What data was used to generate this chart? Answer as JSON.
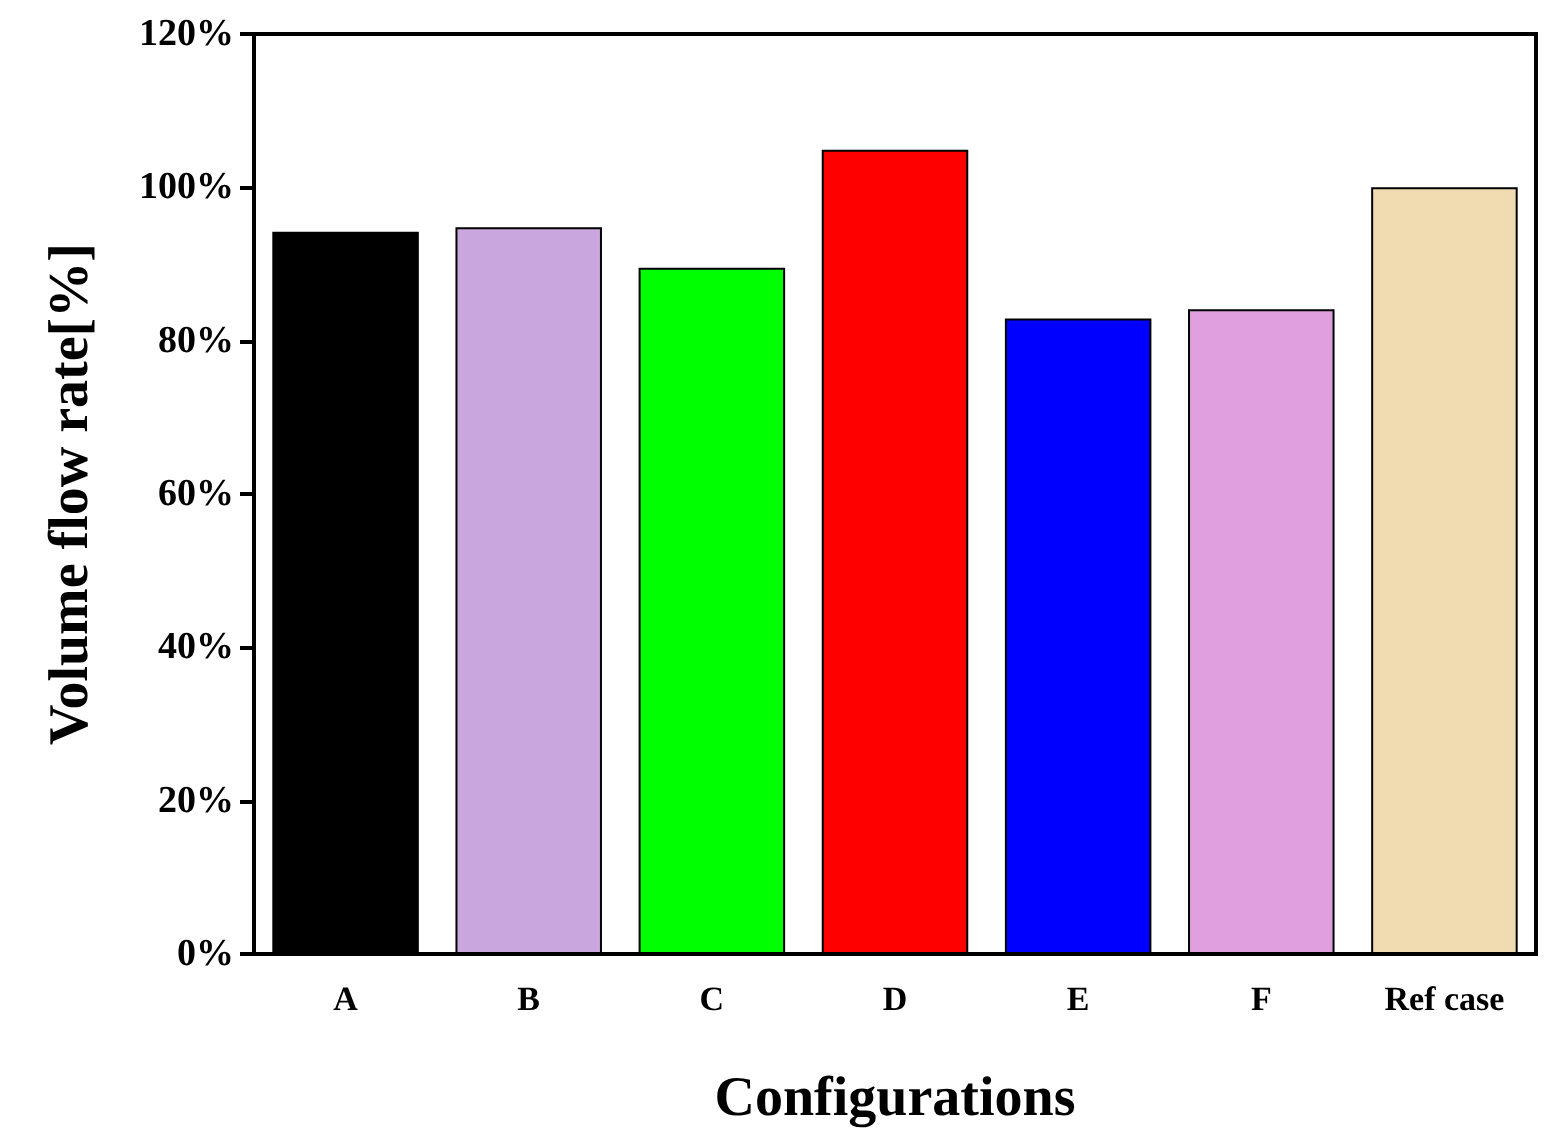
{
  "chart_data": {
    "type": "bar",
    "xlabel": "Configurations",
    "ylabel": "Volume flow rate[%]",
    "categories": [
      "A",
      "B",
      "C",
      "D",
      "E",
      "F",
      "Ref case"
    ],
    "values": [
      94.2,
      94.8,
      89.5,
      104.9,
      82.9,
      84.1,
      100
    ],
    "colors": [
      "#000000",
      "#c9a6dd",
      "#00ff00",
      "#ff0000",
      "#0000ff",
      "#e0a0e0",
      "#f0dcb0"
    ],
    "ylim": [
      0,
      120
    ],
    "yticks": [
      {
        "value": 0,
        "label": "0%"
      },
      {
        "value": 20,
        "label": "20%"
      },
      {
        "value": 40,
        "label": "40%"
      },
      {
        "value": 60,
        "label": "60%"
      },
      {
        "value": 80,
        "label": "80%"
      },
      {
        "value": 100,
        "label": "100%"
      },
      {
        "value": 120,
        "label": "120%"
      }
    ],
    "grid": false
  }
}
